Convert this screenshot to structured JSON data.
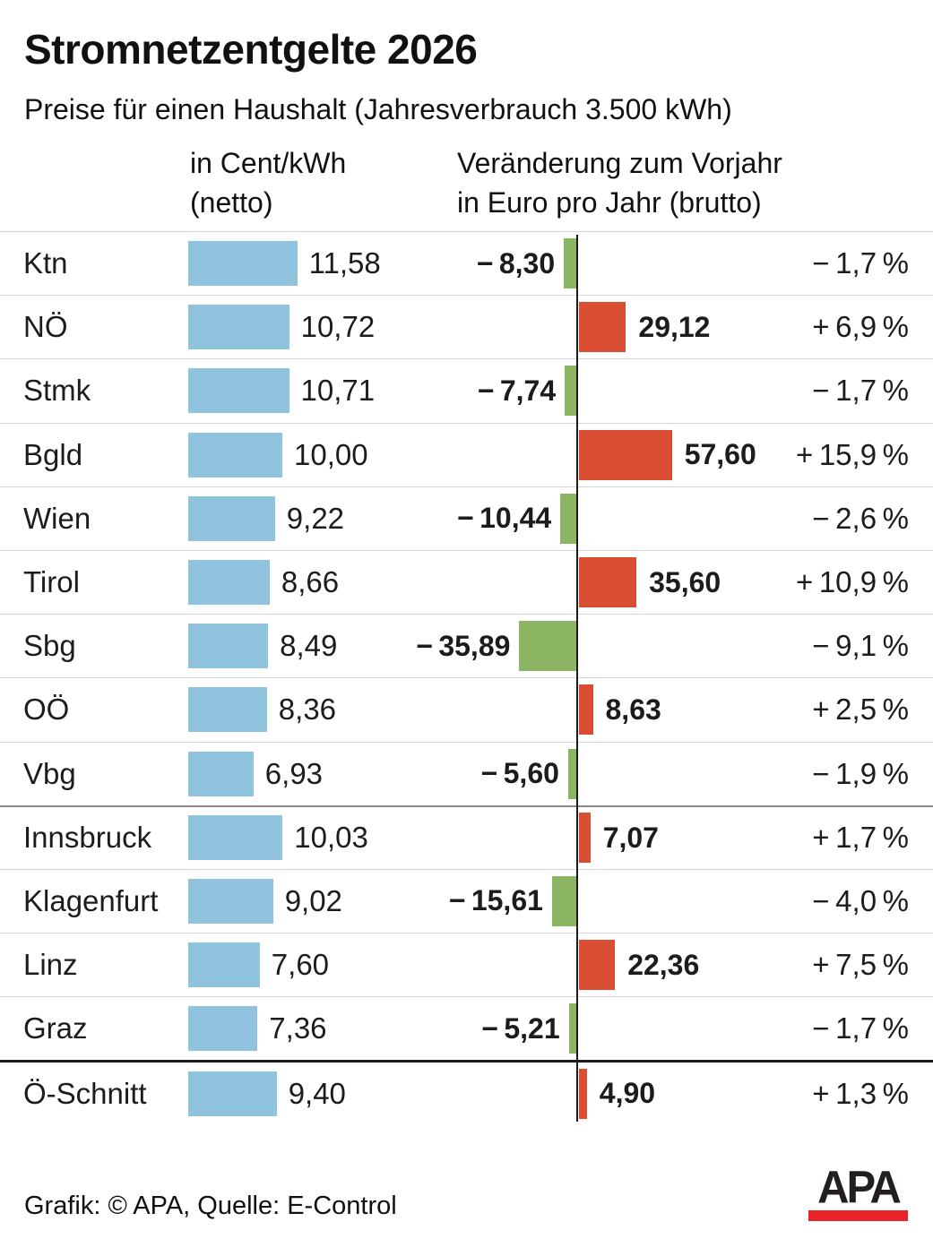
{
  "header": {
    "title": "Stromnetzentgelte 2026",
    "subtitle": "Preise für einen Haushalt (Jahresverbrauch 3.500 kWh)",
    "col1_header": "in Cent/kWh\n(netto)",
    "col2_header": "Veränderung zum Vorjahr\nin Euro pro Jahr (brutto)"
  },
  "footer": {
    "credit": "Grafik: © APA, Quelle: E-Control",
    "logo_text": "APA"
  },
  "colors": {
    "price_bar": "#8fc3de",
    "increase_bar": "#d94e33",
    "decrease_bar": "#8bb563",
    "divider_light": "#d5d5d5",
    "divider_mid": "#8a8a8a",
    "divider_strong": "#1c1c1c",
    "logo_black": "#231f20",
    "logo_red": "#e8232a"
  },
  "chart_data": {
    "type": "bar",
    "title": "Stromnetzentgelte 2026",
    "subtitle": "Preise für einen Haushalt (Jahresverbrauch 3.500 kWh)",
    "orientation": "horizontal",
    "categories": [
      "Ktn",
      "NÖ",
      "Stmk",
      "Bgld",
      "Wien",
      "Tirol",
      "Sbg",
      "OÖ",
      "Vbg",
      "Innsbruck",
      "Klagenfurt",
      "Linz",
      "Graz",
      "Ö-Schnitt"
    ],
    "series": [
      {
        "name": "Preis in Cent/kWh (netto)",
        "values": [
          11.58,
          10.72,
          10.71,
          10.0,
          9.22,
          8.66,
          8.49,
          8.36,
          6.93,
          10.03,
          9.02,
          7.6,
          7.36,
          9.4
        ]
      },
      {
        "name": "Veränderung zum Vorjahr in Euro pro Jahr (brutto)",
        "values": [
          -8.3,
          29.12,
          -7.74,
          57.6,
          -10.44,
          35.6,
          -35.89,
          8.63,
          -5.6,
          7.07,
          -15.61,
          22.36,
          -5.21,
          4.9
        ]
      },
      {
        "name": "Veränderung in Prozent",
        "values": [
          -1.7,
          6.9,
          -1.7,
          15.9,
          -2.6,
          10.9,
          -9.1,
          2.5,
          -1.9,
          1.7,
          -4.0,
          7.5,
          -1.7,
          1.3
        ]
      }
    ],
    "rows": [
      {
        "label": "Ktn",
        "price": 11.58,
        "price_text": "11,58",
        "change": -8.3,
        "change_text": "− 8,30",
        "pct": -1.7,
        "pct_text": "− 1,7 %"
      },
      {
        "label": "NÖ",
        "price": 10.72,
        "price_text": "10,72",
        "change": 29.12,
        "change_text": "29,12",
        "pct": 6.9,
        "pct_text": "+ 6,9 %"
      },
      {
        "label": "Stmk",
        "price": 10.71,
        "price_text": "10,71",
        "change": -7.74,
        "change_text": "− 7,74",
        "pct": -1.7,
        "pct_text": "− 1,7 %"
      },
      {
        "label": "Bgld",
        "price": 10.0,
        "price_text": "10,00",
        "change": 57.6,
        "change_text": "57,60",
        "pct": 15.9,
        "pct_text": "+ 15,9 %"
      },
      {
        "label": "Wien",
        "price": 9.22,
        "price_text": "9,22",
        "change": -10.44,
        "change_text": "− 10,44",
        "pct": -2.6,
        "pct_text": "− 2,6 %"
      },
      {
        "label": "Tirol",
        "price": 8.66,
        "price_text": "8,66",
        "change": 35.6,
        "change_text": "35,60",
        "pct": 10.9,
        "pct_text": "+ 10,9 %"
      },
      {
        "label": "Sbg",
        "price": 8.49,
        "price_text": "8,49",
        "change": -35.89,
        "change_text": "− 35,89",
        "pct": -9.1,
        "pct_text": "− 9,1 %"
      },
      {
        "label": "OÖ",
        "price": 8.36,
        "price_text": "8,36",
        "change": 8.63,
        "change_text": "8,63",
        "pct": 2.5,
        "pct_text": "+ 2,5 %"
      },
      {
        "label": "Vbg",
        "price": 6.93,
        "price_text": "6,93",
        "change": -5.6,
        "change_text": "− 5,60",
        "pct": -1.9,
        "pct_text": "− 1,9 %"
      },
      {
        "label": "Innsbruck",
        "price": 10.03,
        "price_text": "10,03",
        "change": 7.07,
        "change_text": "7,07",
        "pct": 1.7,
        "pct_text": "+ 1,7 %"
      },
      {
        "label": "Klagenfurt",
        "price": 9.02,
        "price_text": "9,02",
        "change": -15.61,
        "change_text": "− 15,61",
        "pct": -4.0,
        "pct_text": "− 4,0 %"
      },
      {
        "label": "Linz",
        "price": 7.6,
        "price_text": "7,60",
        "change": 22.36,
        "change_text": "22,36",
        "pct": 7.5,
        "pct_text": "+ 7,5 %"
      },
      {
        "label": "Graz",
        "price": 7.36,
        "price_text": "7,36",
        "change": -5.21,
        "change_text": "− 5,21",
        "pct": -1.7,
        "pct_text": "− 1,7 %"
      },
      {
        "label": "Ö-Schnitt",
        "price": 9.4,
        "price_text": "9,40",
        "change": 4.9,
        "change_text": "4,90",
        "pct": 1.3,
        "pct_text": "+ 1,3 %"
      }
    ],
    "separator_after_index": 8,
    "average_row_index": 13,
    "legend_position": "none",
    "grid": "row-dividers"
  }
}
